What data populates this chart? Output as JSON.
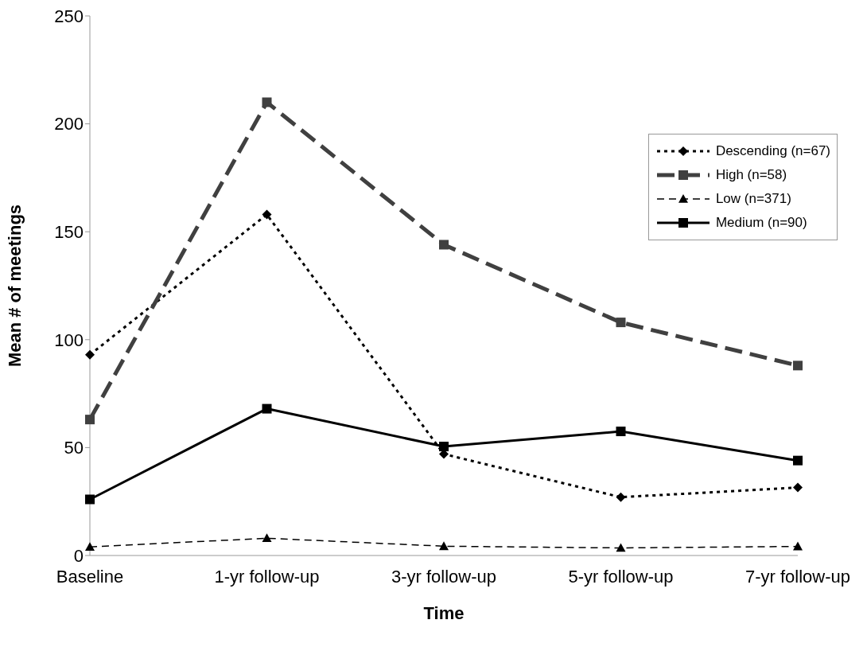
{
  "chart_data": {
    "type": "line",
    "xlabel": "Time",
    "ylabel": "Mean # of meetings",
    "categories": [
      "Baseline",
      "1-yr follow-up",
      "3-yr follow-up",
      "5-yr follow-up",
      "7-yr follow-up"
    ],
    "ylim": [
      0,
      250
    ],
    "yticks": [
      0,
      50,
      100,
      150,
      200,
      250
    ],
    "legend": "right",
    "series": [
      {
        "name": "Descending (n=67)",
        "color": "#000000",
        "values": [
          93,
          158,
          47,
          27,
          31.5
        ],
        "line_style": "dotted",
        "marker": "diamond"
      },
      {
        "name": "High (n=58)",
        "color": "#404040",
        "values": [
          63,
          210,
          144,
          108,
          88
        ],
        "line_style": "dashed",
        "marker": "square"
      },
      {
        "name": "Low (n=371)",
        "color": "#000000",
        "values": [
          4,
          8,
          4.3,
          3.5,
          4.2
        ],
        "line_style": "dashed",
        "marker": "triangle"
      },
      {
        "name": "Medium (n=90)",
        "color": "#000000",
        "values": [
          26,
          68,
          50.5,
          57.5,
          44
        ],
        "line_style": "solid",
        "marker": "square"
      }
    ]
  }
}
